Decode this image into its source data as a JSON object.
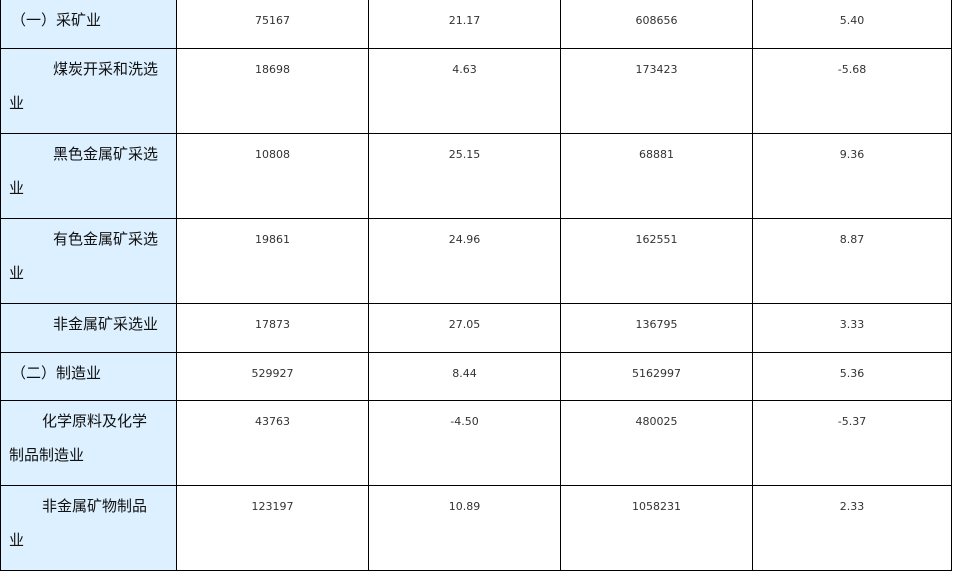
{
  "rows": [
    {
      "label": [
        "（一）采矿业"
      ],
      "indent": 0,
      "values": [
        "75167",
        "21.17",
        "608656",
        "5.40"
      ]
    },
    {
      "label": [
        "煤炭开采和洗选",
        "业"
      ],
      "indent": 1,
      "values": [
        "18698",
        "4.63",
        "173423",
        "-5.68"
      ]
    },
    {
      "label": [
        "黑色金属矿采选",
        "业"
      ],
      "indent": 1,
      "values": [
        "10808",
        "25.15",
        "68881",
        "9.36"
      ]
    },
    {
      "label": [
        "有色金属矿采选",
        "业"
      ],
      "indent": 1,
      "values": [
        "19861",
        "24.96",
        "162551",
        "8.87"
      ]
    },
    {
      "label": [
        "非金属矿采选业"
      ],
      "indent": 1,
      "values": [
        "17873",
        "27.05",
        "136795",
        "3.33"
      ]
    },
    {
      "label": [
        "（二）制造业"
      ],
      "indent": 0,
      "values": [
        "529927",
        "8.44",
        "5162997",
        "5.36"
      ]
    },
    {
      "label": [
        "化学原料及化学",
        "制品制造业"
      ],
      "indent": 2,
      "values": [
        "43763",
        "-4.50",
        "480025",
        "-5.37"
      ]
    },
    {
      "label": [
        "非金属矿物制品",
        "业"
      ],
      "indent": 2,
      "values": [
        "123197",
        "10.89",
        "1058231",
        "2.33"
      ]
    }
  ]
}
